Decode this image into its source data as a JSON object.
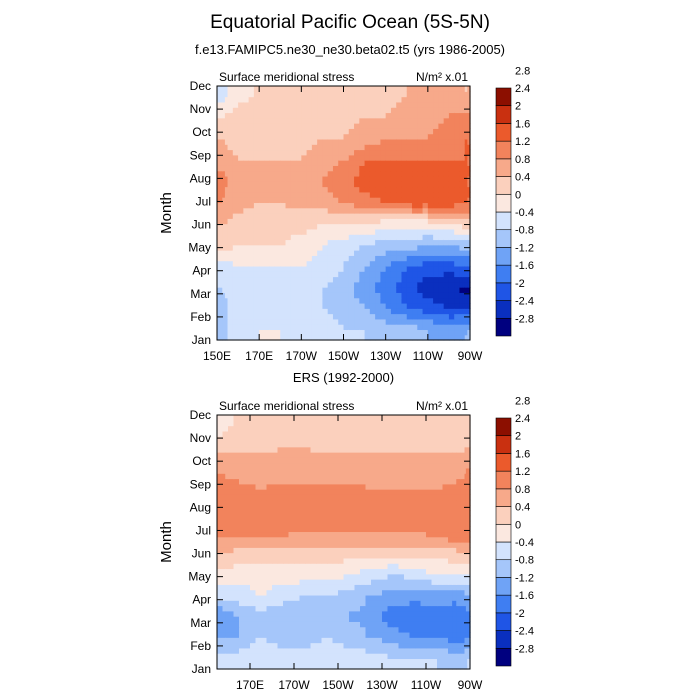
{
  "figure": {
    "title": "Equatorial Pacific Ocean (5S-5N)",
    "subtitle": "f.e13.FAMIPC5.ne30_ne30.beta02.t5 (yrs 1986-2005)"
  },
  "palette": [
    "#00007f",
    "#0a2fbf",
    "#1f55e6",
    "#3f7ef2",
    "#6fa3f6",
    "#a5c6fa",
    "#d3e3fd",
    "#fbe8e0",
    "#fbd0bd",
    "#f7a98a",
    "#f2835c",
    "#eb5a2c",
    "#c93010",
    "#8c0f00"
  ],
  "levels": [
    -2.8,
    -2.4,
    -2,
    -1.6,
    -1.2,
    -0.8,
    -0.4,
    0,
    0.4,
    0.8,
    1.2,
    1.6,
    2,
    2.4,
    2.8
  ],
  "chart_data": [
    {
      "type": "heatmap",
      "subtitle": "",
      "left_label": "Surface meridional stress",
      "units": "N/m² x.01",
      "ylabel": "Month",
      "xlabel": "",
      "x": [
        150,
        160,
        170,
        180,
        190,
        200,
        210,
        220,
        230,
        240,
        250,
        260,
        270
      ],
      "x_tick_values": [
        150,
        170,
        190,
        210,
        230,
        250,
        270
      ],
      "x_tick_labels": [
        "150E",
        "170E",
        "170W",
        "150W",
        "130W",
        "110W",
        "90W"
      ],
      "y_tick_labels": [
        "Jan",
        "Feb",
        "Mar",
        "Apr",
        "May",
        "Jun",
        "Jul",
        "Aug",
        "Sep",
        "Oct",
        "Nov",
        "Dec"
      ],
      "xlim": [
        150,
        270
      ],
      "z": [
        [
          -1.0,
          -0.6,
          -0.4,
          -0.4,
          -0.6,
          -0.6,
          -0.8,
          -0.8,
          -1.0,
          -1.0,
          -1.2,
          -1.4,
          -1.2
        ],
        [
          -1.0,
          -0.6,
          -0.6,
          -0.6,
          -0.6,
          -0.8,
          -1.0,
          -1.2,
          -1.6,
          -2.0,
          -2.2,
          -2.4,
          -2.4
        ],
        [
          -0.8,
          -0.6,
          -0.6,
          -0.6,
          -0.6,
          -0.8,
          -1.0,
          -1.4,
          -1.8,
          -2.2,
          -2.6,
          -2.8,
          -2.9
        ],
        [
          -0.6,
          -0.4,
          -0.4,
          -0.4,
          -0.4,
          -0.6,
          -0.8,
          -1.2,
          -1.6,
          -2.0,
          -2.2,
          -2.2,
          -2.0
        ],
        [
          0.2,
          0.0,
          0.0,
          0.0,
          -0.2,
          -0.4,
          -0.6,
          -0.8,
          -1.0,
          -1.0,
          -1.2,
          -1.2,
          -1.0
        ],
        [
          0.4,
          0.3,
          0.2,
          0.2,
          0.2,
          0.0,
          0.0,
          0.0,
          -0.2,
          -0.2,
          -0.2,
          0.0,
          0.2
        ],
        [
          0.8,
          0.5,
          0.4,
          0.4,
          0.5,
          0.6,
          0.8,
          1.0,
          1.2,
          1.4,
          1.4,
          1.4,
          1.2
        ],
        [
          1.0,
          0.6,
          0.6,
          0.6,
          0.6,
          0.8,
          1.0,
          1.4,
          1.6,
          1.6,
          1.6,
          1.6,
          1.2
        ],
        [
          0.6,
          0.4,
          0.4,
          0.4,
          0.4,
          0.6,
          0.8,
          1.2,
          1.2,
          1.2,
          1.2,
          1.2,
          1.2
        ],
        [
          0.4,
          0.3,
          0.3,
          0.3,
          0.3,
          0.4,
          0.4,
          0.6,
          0.8,
          0.8,
          0.8,
          1.0,
          1.2
        ],
        [
          0.0,
          0.3,
          0.3,
          0.3,
          0.3,
          0.3,
          0.3,
          0.4,
          0.4,
          0.6,
          0.6,
          0.8,
          1.0
        ],
        [
          -0.6,
          -0.2,
          0.1,
          0.1,
          0.2,
          0.2,
          0.3,
          0.3,
          0.3,
          0.4,
          0.6,
          0.8,
          0.4
        ]
      ]
    },
    {
      "type": "heatmap",
      "subtitle": "ERS (1992-2000)",
      "left_label": "Surface meridional stress",
      "units": "N/m² x.01",
      "ylabel": "Month",
      "xlabel": "",
      "x": [
        155,
        165,
        175,
        185,
        195,
        205,
        215,
        225,
        235,
        245,
        255,
        265,
        270
      ],
      "x_tick_values": [
        170,
        190,
        210,
        230,
        250,
        270
      ],
      "x_tick_labels": [
        "170E",
        "170W",
        "150W",
        "130W",
        "110W",
        "90W"
      ],
      "y_tick_labels": [
        "Jan",
        "Feb",
        "Mar",
        "Apr",
        "May",
        "Jun",
        "Jul",
        "Aug",
        "Sep",
        "Oct",
        "Nov",
        "Dec"
      ],
      "xlim": [
        155,
        270
      ],
      "z": [
        [
          -0.6,
          -0.6,
          -0.4,
          -0.6,
          -0.6,
          -0.4,
          -0.6,
          -0.6,
          -0.8,
          -0.8,
          -0.8,
          -1.0,
          -0.8
        ],
        [
          -1.2,
          -1.2,
          -0.8,
          -1.0,
          -1.0,
          -0.8,
          -1.0,
          -1.2,
          -1.4,
          -1.6,
          -1.6,
          -1.8,
          -1.6
        ],
        [
          -1.6,
          -1.2,
          -1.0,
          -1.2,
          -1.2,
          -1.0,
          -1.2,
          -1.4,
          -1.8,
          -2.0,
          -1.8,
          -2.0,
          -1.8
        ],
        [
          -0.6,
          -0.6,
          -0.4,
          -0.6,
          -0.8,
          -0.8,
          -1.0,
          -1.2,
          -1.4,
          -1.4,
          -1.4,
          -1.4,
          -1.2
        ],
        [
          -0.2,
          -0.2,
          -0.2,
          -0.2,
          -0.2,
          -0.2,
          -0.4,
          -0.6,
          -0.8,
          -0.6,
          -0.4,
          -0.4,
          -0.4
        ],
        [
          0.4,
          0.3,
          0.3,
          0.3,
          0.3,
          0.2,
          0.2,
          0.2,
          0.2,
          0.2,
          0.2,
          0.3,
          0.4
        ],
        [
          0.9,
          0.9,
          0.9,
          0.9,
          0.8,
          0.8,
          0.8,
          0.8,
          0.8,
          0.8,
          1.0,
          1.2,
          1.2
        ],
        [
          0.9,
          0.9,
          0.9,
          0.9,
          0.9,
          0.9,
          0.8,
          0.9,
          0.9,
          0.9,
          0.9,
          1.0,
          1.0
        ],
        [
          1.2,
          0.9,
          0.8,
          0.9,
          0.9,
          0.9,
          0.9,
          0.8,
          0.8,
          0.8,
          0.8,
          0.9,
          1.0
        ],
        [
          0.6,
          0.6,
          0.6,
          0.6,
          0.6,
          0.6,
          0.6,
          0.6,
          0.6,
          0.6,
          0.6,
          0.6,
          0.8
        ],
        [
          0.3,
          0.3,
          0.3,
          0.4,
          0.4,
          0.3,
          0.3,
          0.3,
          0.3,
          0.3,
          0.3,
          0.3,
          0.4
        ],
        [
          -0.2,
          0.1,
          0.1,
          0.1,
          0.1,
          0.1,
          0.1,
          0.1,
          0.1,
          0.1,
          0.1,
          0.1,
          0.2
        ]
      ]
    }
  ]
}
